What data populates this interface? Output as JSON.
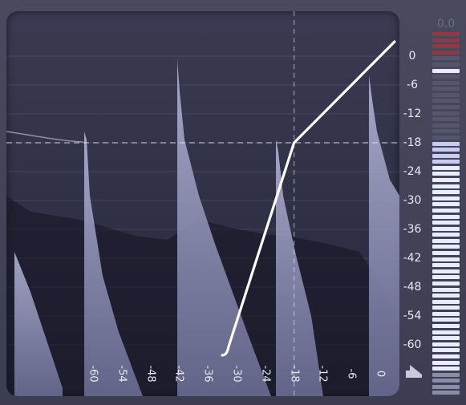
{
  "y_scale": {
    "labels": [
      "0",
      "-6",
      "-12",
      "-18",
      "-24",
      "-30",
      "-36",
      "-42",
      "-48",
      "-54",
      "-60"
    ],
    "values": [
      0,
      -6,
      -12,
      -18,
      -24,
      -30,
      -36,
      -42,
      -48,
      -54,
      -60
    ]
  },
  "x_scale": {
    "labels": [
      "-60",
      "-54",
      "-48",
      "-42",
      "-36",
      "-30",
      "-24",
      "-18",
      "-12",
      "-6",
      "0"
    ],
    "values": [
      -60,
      -54,
      -48,
      -42,
      -36,
      -30,
      -24,
      -18,
      -12,
      -6,
      0
    ]
  },
  "threshold_db": -18,
  "transfer_curve": [
    [
      -32,
      -62
    ],
    [
      -18,
      -18
    ],
    [
      3,
      3
    ]
  ],
  "meter": {
    "peak_readout": "0.0",
    "level": 0.9
  },
  "colors": {
    "background": "#3a3a4e",
    "curve": "#ffffff",
    "waveform": "#9a9cc4",
    "meter_lit": "#e8ecff",
    "meter_dim": "#55556b",
    "meter_clip": "#8a3a48"
  },
  "icons": {
    "mode": "transfer-mode-icon"
  }
}
